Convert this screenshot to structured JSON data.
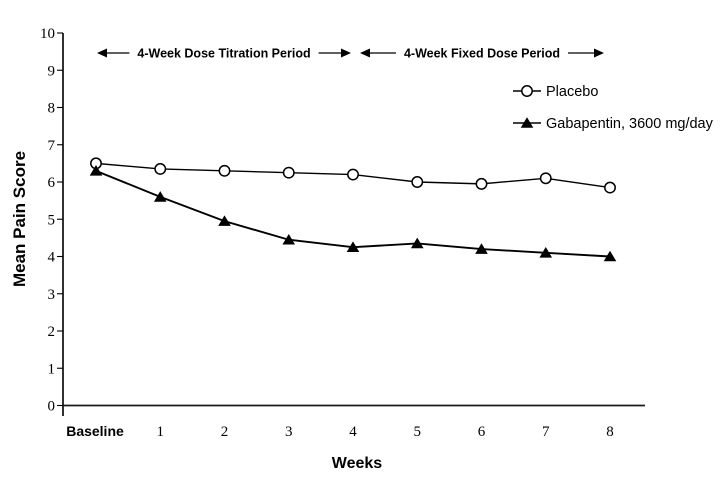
{
  "page": {
    "background": "#ffffff",
    "foreground": "#000000"
  },
  "chart_data": {
    "type": "line",
    "title": "",
    "xlabel": "Weeks",
    "ylabel": "Mean Pain Score",
    "ylim": [
      0,
      10
    ],
    "yticks": [
      "0",
      "1",
      "2",
      "3",
      "4",
      "5",
      "6",
      "7",
      "8",
      "9",
      "10"
    ],
    "categories": [
      "Baseline",
      "1",
      "2",
      "3",
      "4",
      "5",
      "6",
      "7",
      "8"
    ],
    "series": [
      {
        "name": "Placebo",
        "marker": "open-circle",
        "color": "#000000",
        "values": [
          6.5,
          6.35,
          6.3,
          6.25,
          6.2,
          6.0,
          5.95,
          6.1,
          5.85
        ]
      },
      {
        "name": "Gabapentin, 3600 mg/day",
        "marker": "filled-triangle",
        "color": "#000000",
        "values": [
          6.3,
          5.6,
          4.95,
          4.45,
          4.25,
          4.35,
          4.2,
          4.1,
          4.0
        ]
      }
    ],
    "annotations": [
      {
        "label": "4-Week Dose Titration Period",
        "from_category": "Baseline",
        "to_category": "4"
      },
      {
        "label": "4-Week Fixed Dose Period",
        "from_category": "4",
        "to_category": "8"
      }
    ],
    "legend_position": "upper right",
    "grid": false
  }
}
